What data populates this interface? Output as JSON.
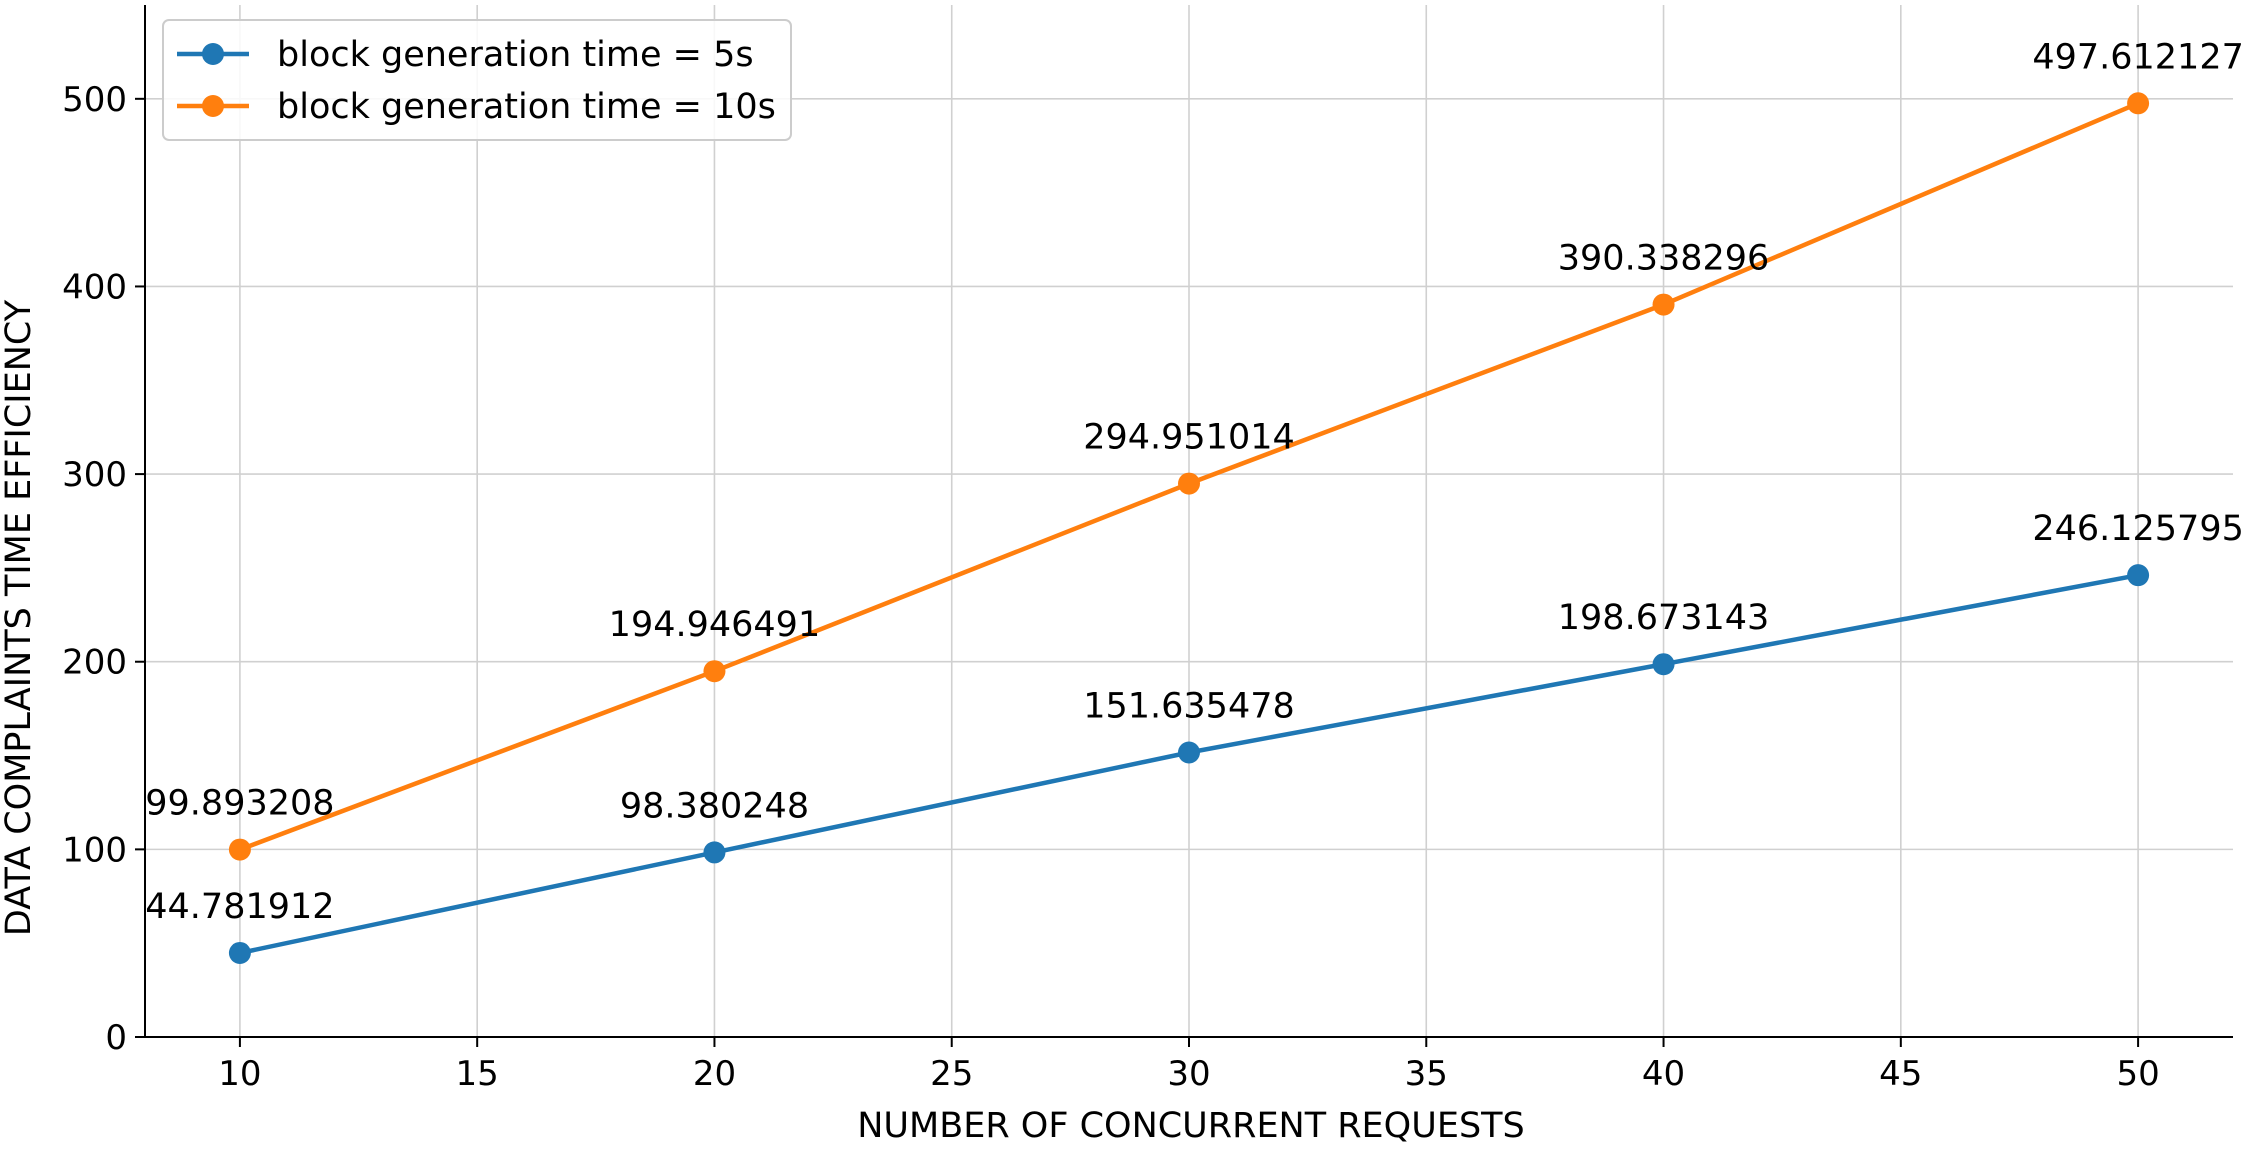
{
  "chart_data": {
    "type": "line",
    "title": "",
    "xlabel": "NUMBER OF CONCURRENT REQUESTS",
    "ylabel": "DATA COMPLAINTS TIME EFFICIENCY",
    "x": [
      10,
      20,
      30,
      40,
      50
    ],
    "xlim": [
      8,
      52
    ],
    "ylim": [
      0,
      550
    ],
    "xticks": [
      10,
      15,
      20,
      25,
      30,
      35,
      40,
      45,
      50
    ],
    "yticks": [
      0,
      100,
      200,
      300,
      400,
      500
    ],
    "grid": true,
    "legend_position": "top-left",
    "series": [
      {
        "name": "block generation time = 5s",
        "color": "#1f77b4",
        "values": [
          44.781912,
          98.380248,
          151.635478,
          198.673143,
          246.125795
        ],
        "labels": [
          "44.781912",
          "98.380248",
          "151.635478",
          "198.673143",
          "246.125795"
        ]
      },
      {
        "name": "block generation time = 10s",
        "color": "#ff7f0e",
        "values": [
          99.893208,
          194.946491,
          294.951014,
          390.338296,
          497.612127
        ],
        "labels": [
          "99.893208",
          "194.946491",
          "294.951014",
          "390.338296",
          "497.612127"
        ]
      }
    ]
  }
}
